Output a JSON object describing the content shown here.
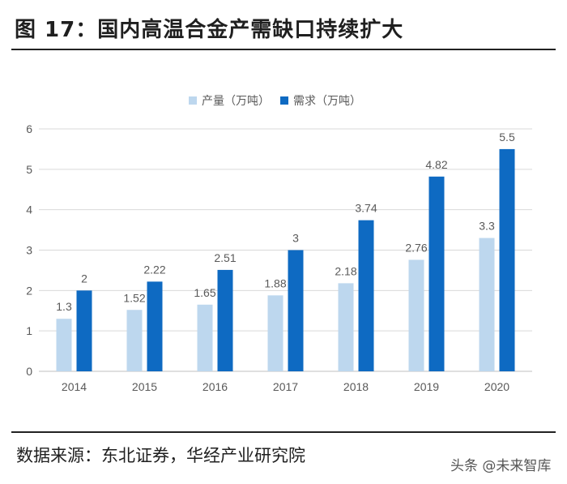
{
  "title": "图 17：国内高温合金产需缺口持续扩大",
  "source": "数据来源：东北证券，华经产业研究院",
  "watermark": "头条 @未来智库",
  "chart_data": {
    "type": "bar",
    "categories": [
      "2014",
      "2015",
      "2016",
      "2017",
      "2018",
      "2019",
      "2020"
    ],
    "series": [
      {
        "name": "产量（万吨）",
        "values": [
          1.3,
          1.52,
          1.65,
          1.88,
          2.18,
          2.76,
          3.3
        ],
        "labels": [
          "1.3",
          "1.52",
          "1.65",
          "1.88",
          "2.18",
          "2.76",
          "3.3"
        ],
        "color": "#bdd7ee"
      },
      {
        "name": "需求（万吨）",
        "values": [
          2,
          2.22,
          2.51,
          3,
          3.74,
          4.82,
          5.5
        ],
        "labels": [
          "2",
          "2.22",
          "2.51",
          "3",
          "3.74",
          "4.82",
          "5.5"
        ],
        "color": "#0e6ac2"
      }
    ],
    "ylim": [
      0,
      6
    ],
    "yticks": [
      "0",
      "1",
      "2",
      "3",
      "4",
      "5",
      "6"
    ],
    "grid": true,
    "legend": "top-center",
    "gridline_color": "#d9d9d9",
    "axis_color": "#bfbfbf",
    "text_color": "#595959"
  }
}
